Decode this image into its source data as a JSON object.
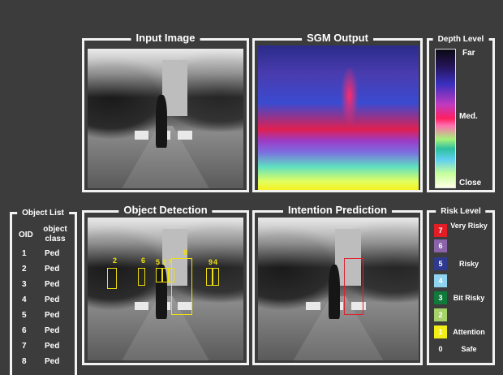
{
  "panels": {
    "input_image": {
      "title": "Input Image"
    },
    "sgm_output": {
      "title": "SGM Output"
    },
    "depth_level": {
      "title": "Depth Level",
      "far": "Far",
      "med": "Med.",
      "close": "Close"
    },
    "object_list": {
      "title": "Object List",
      "col_oid": "OID",
      "col_class": "object class",
      "rows": [
        {
          "oid": "1",
          "cls": "Ped"
        },
        {
          "oid": "2",
          "cls": "Ped"
        },
        {
          "oid": "3",
          "cls": "Ped"
        },
        {
          "oid": "4",
          "cls": "Ped"
        },
        {
          "oid": "5",
          "cls": "Ped"
        },
        {
          "oid": "6",
          "cls": "Ped"
        },
        {
          "oid": "7",
          "cls": "Ped"
        },
        {
          "oid": "8",
          "cls": "Ped"
        }
      ]
    },
    "object_detection": {
      "title": "Object Detection",
      "ids": [
        "2",
        "6",
        "5",
        "3",
        "7",
        "8",
        "9",
        "4"
      ]
    },
    "intention_prediction": {
      "title": "Intention Prediction"
    },
    "risk_level": {
      "title": "Risk Level",
      "levels": [
        {
          "n": "7",
          "label": "Very Risky",
          "color": "#e31d25"
        },
        {
          "n": "6",
          "label": "",
          "color": "#8a63a8"
        },
        {
          "n": "5",
          "label": "Risky",
          "color": "#2e3a8f"
        },
        {
          "n": "4",
          "label": "",
          "color": "#8fd3f0"
        },
        {
          "n": "3",
          "label": "Bit Risky",
          "color": "#0f7a3a"
        },
        {
          "n": "2",
          "label": "",
          "color": "#a6d26b"
        },
        {
          "n": "1",
          "label": "Attention",
          "color": "#f2ee1a"
        },
        {
          "n": "0",
          "label": "Safe",
          "color": ""
        }
      ]
    }
  }
}
